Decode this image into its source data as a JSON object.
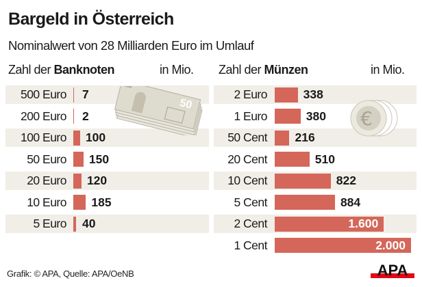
{
  "title": "Bargeld in Österreich",
  "subtitle": "Nominalwert von 28 Milliarden Euro im Umlauf",
  "footer": "Grafik: © APA, Quelle: APA/OeNB",
  "logo_text": "APA",
  "colors": {
    "bar": "#d4675a",
    "band": "#f1eee8",
    "logo_red": "#e30613"
  },
  "chart_data": [
    {
      "type": "bar",
      "orientation": "horizontal",
      "header_prefix": "Zahl der ",
      "header_bold": "Banknoten",
      "unit": "in Mio.",
      "illustration": "banknote-stack-icon",
      "categories": [
        "500 Euro",
        "200 Euro",
        "100 Euro",
        "50 Euro",
        "20 Euro",
        "10 Euro",
        "5 Euro"
      ],
      "values": [
        7,
        2,
        100,
        150,
        120,
        185,
        40
      ],
      "value_labels": [
        "7",
        "2",
        "100",
        "150",
        "120",
        "185",
        "40"
      ]
    },
    {
      "type": "bar",
      "orientation": "horizontal",
      "header_prefix": "Zahl der ",
      "header_bold": "Münzen",
      "unit": "in Mio.",
      "illustration": "euro-coin-icon",
      "categories": [
        "2 Euro",
        "1 Euro",
        "50 Cent",
        "20 Cent",
        "10 Cent",
        "5 Cent",
        "2 Cent",
        "1 Cent"
      ],
      "values": [
        338,
        380,
        216,
        510,
        822,
        884,
        1600,
        2000
      ],
      "value_labels": [
        "338",
        "380",
        "216",
        "510",
        "822",
        "884",
        "1.600",
        "2.000"
      ]
    }
  ]
}
